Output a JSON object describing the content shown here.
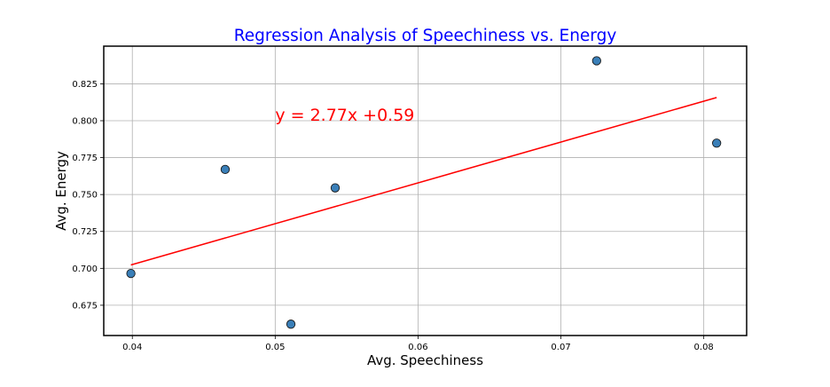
{
  "chart_data": {
    "type": "scatter",
    "title": "Regression Analysis of Speechiness vs. Energy",
    "xlabel": "Avg. Speechiness",
    "ylabel": "Avg. Energy",
    "xlim": [
      0.038,
      0.083
    ],
    "ylim": [
      0.6545,
      0.8505
    ],
    "xticks": [
      0.04,
      0.05,
      0.06,
      0.07,
      0.08
    ],
    "xtick_labels": [
      "0.04",
      "0.05",
      "0.06",
      "0.07",
      "0.08"
    ],
    "yticks": [
      0.675,
      0.7,
      0.725,
      0.75,
      0.775,
      0.8,
      0.825
    ],
    "ytick_labels": [
      "0.675",
      "0.700",
      "0.725",
      "0.750",
      "0.775",
      "0.800",
      "0.825"
    ],
    "grid": true,
    "points": [
      {
        "x": 0.0399,
        "y": 0.6965
      },
      {
        "x": 0.0465,
        "y": 0.767
      },
      {
        "x": 0.0511,
        "y": 0.6622
      },
      {
        "x": 0.0542,
        "y": 0.7545
      },
      {
        "x": 0.0725,
        "y": 0.8406
      },
      {
        "x": 0.0809,
        "y": 0.7848
      }
    ],
    "regression": {
      "slope": 2.77,
      "intercept": 0.59,
      "x_range": [
        0.0399,
        0.0809
      ],
      "y_range": [
        0.7023,
        0.8157
      ],
      "annotation": "y = 2.77x +0.59",
      "annotation_pos": {
        "x": 0.05,
        "y": 0.8
      }
    },
    "colors": {
      "title": "#0000ff",
      "points": "#3a7fb8",
      "point_edge": "#1a1a1a",
      "regression": "#ff0000",
      "annotation": "#ff0000"
    }
  }
}
